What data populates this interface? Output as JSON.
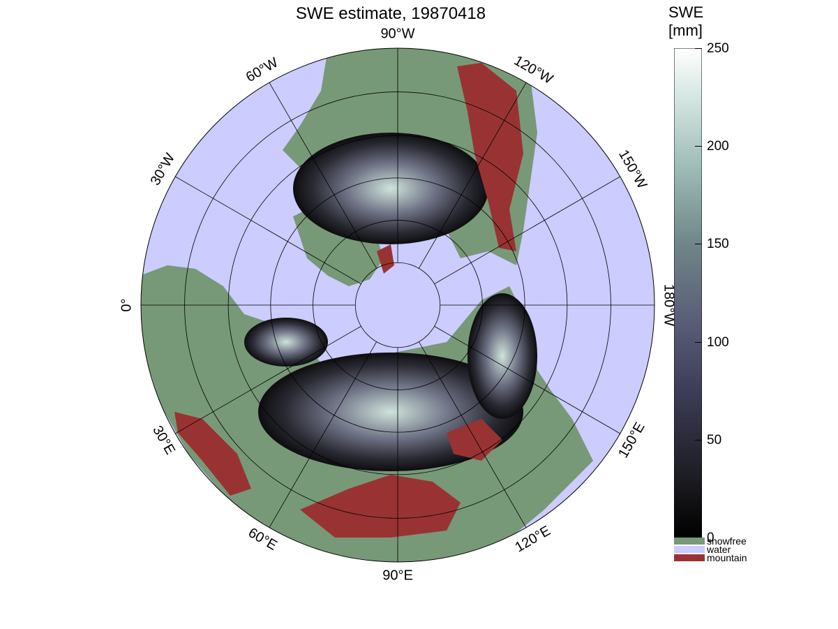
{
  "title": "SWE estimate, 19870418",
  "map": {
    "projection": "north polar stereographic",
    "longitude_labels": [
      {
        "text": "90°W",
        "angle_deg": 0
      },
      {
        "text": "120°W",
        "angle_deg": 30
      },
      {
        "text": "150°W",
        "angle_deg": 60
      },
      {
        "text": "180°W",
        "angle_deg": 90
      },
      {
        "text": "150°E",
        "angle_deg": 120
      },
      {
        "text": "120°E",
        "angle_deg": 150
      },
      {
        "text": "90°E",
        "angle_deg": 180
      },
      {
        "text": "60°E",
        "angle_deg": 210
      },
      {
        "text": "30°E",
        "angle_deg": 240
      },
      {
        "text": "0°",
        "angle_deg": 270
      },
      {
        "text": "30°W",
        "angle_deg": 300
      },
      {
        "text": "60°W",
        "angle_deg": 330
      }
    ],
    "colors": {
      "water": "#ccccff",
      "snowfree": "#779977",
      "mountain": "#993333",
      "snow_low": "#0a0a0c",
      "snow_high": "#ffffff"
    }
  },
  "colorbar": {
    "title_line1": "SWE",
    "title_line2": "[mm]",
    "min": 0,
    "max": 250,
    "ticks": [
      "0",
      "50",
      "100",
      "150",
      "200",
      "250"
    ],
    "tick_values": [
      0,
      50,
      100,
      150,
      200,
      250
    ]
  },
  "legend": [
    {
      "label": "snowfree",
      "color": "#779977"
    },
    {
      "label": "water",
      "color": "#ccccff"
    },
    {
      "label": "mountain",
      "color": "#993333"
    }
  ]
}
